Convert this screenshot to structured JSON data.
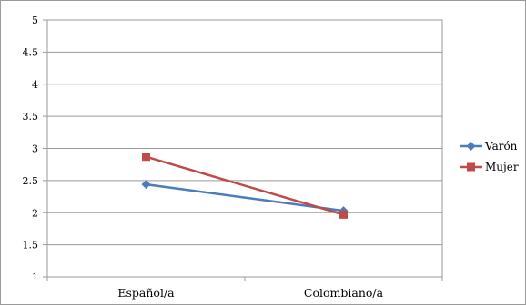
{
  "chart_data": {
    "type": "line",
    "title": "",
    "xlabel": "",
    "ylabel": "",
    "categories": [
      "Español/a",
      "Colombiano/a"
    ],
    "ylim": [
      1,
      5
    ],
    "yticks": [
      "1",
      "1.5",
      "2",
      "2.5",
      "3",
      "3.5",
      "4",
      "4.5",
      "5"
    ],
    "grid": true,
    "legend_position": "right",
    "series": [
      {
        "name": "Varón",
        "values": [
          2.44,
          2.03
        ],
        "color": "#4a7ebb",
        "marker": "diamond"
      },
      {
        "name": "Mujer",
        "values": [
          2.87,
          1.97
        ],
        "color": "#be4b48",
        "marker": "square"
      }
    ]
  }
}
